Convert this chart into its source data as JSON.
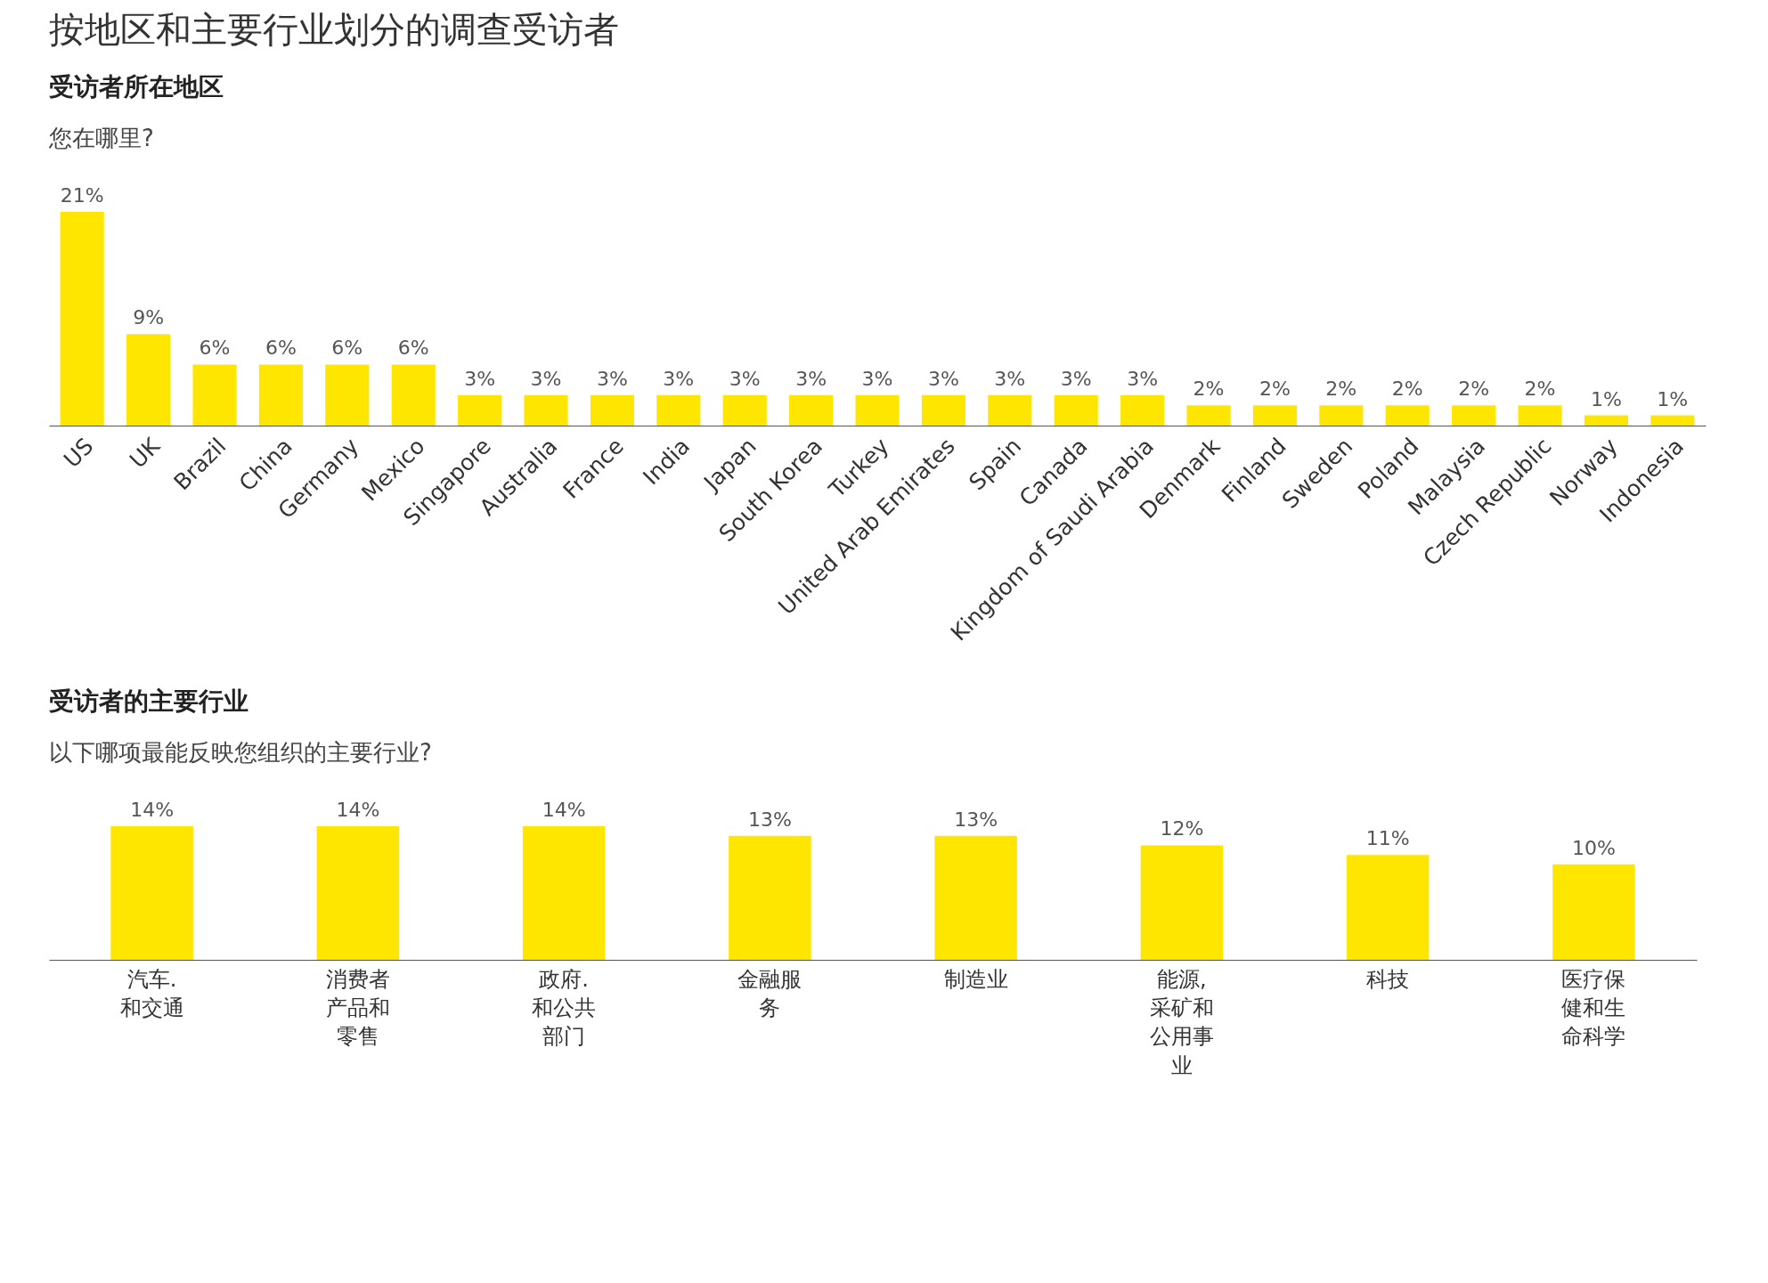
{
  "chart_data": [
    {
      "type": "bar",
      "title": "受访者所在地区",
      "subtitle": "您在哪里?",
      "annotations": [
        "按地区和主要行业划分的调查受访者"
      ],
      "categories": [
        "US",
        "UK",
        "Brazil",
        "China",
        "Germany",
        "Mexico",
        "Singapore",
        "Australia",
        "France",
        "India",
        "Japan",
        "South Korea",
        "Turkey",
        "United Arab Emirates",
        "Spain",
        "Canada",
        "Kingdom of Saudi Arabia",
        "Denmark",
        "Finland",
        "Sweden",
        "Poland",
        "Malaysia",
        "Czech Republic",
        "Norway",
        "Indonesia"
      ],
      "values": [
        21,
        9,
        6,
        6,
        6,
        6,
        3,
        3,
        3,
        3,
        3,
        3,
        3,
        3,
        3,
        3,
        3,
        2,
        2,
        2,
        2,
        2,
        2,
        1,
        1
      ],
      "value_labels": [
        "21%",
        "9%",
        "6%",
        "6%",
        "6%",
        "6%",
        "3%",
        "3%",
        "3%",
        "3%",
        "3%",
        "3%",
        "3%",
        "3%",
        "3%",
        "3%",
        "3%",
        "2%",
        "2%",
        "2%",
        "2%",
        "2%",
        "2%",
        "1%",
        "1%"
      ],
      "color": "#ffe600",
      "grid": false,
      "tick_labels": "x"
    },
    {
      "type": "bar",
      "title": "受访者的主要行业",
      "subtitle": "以下哪项最能反映您组织的主要行业?",
      "categories": [
        "汽车.和交通",
        "消费者产品和零售",
        "政府.和公共部门",
        "金融服务",
        "制造业",
        "能源,采矿和公用事业",
        "科技",
        "医疗保健和生命科学"
      ],
      "values": [
        14,
        14,
        14,
        13,
        13,
        12,
        11,
        10
      ],
      "value_labels": [
        "14%",
        "14%",
        "14%",
        "13%",
        "13%",
        "12%",
        "11%",
        "10%"
      ],
      "color": "#ffe600",
      "grid": false,
      "tick_labels": "x"
    }
  ]
}
